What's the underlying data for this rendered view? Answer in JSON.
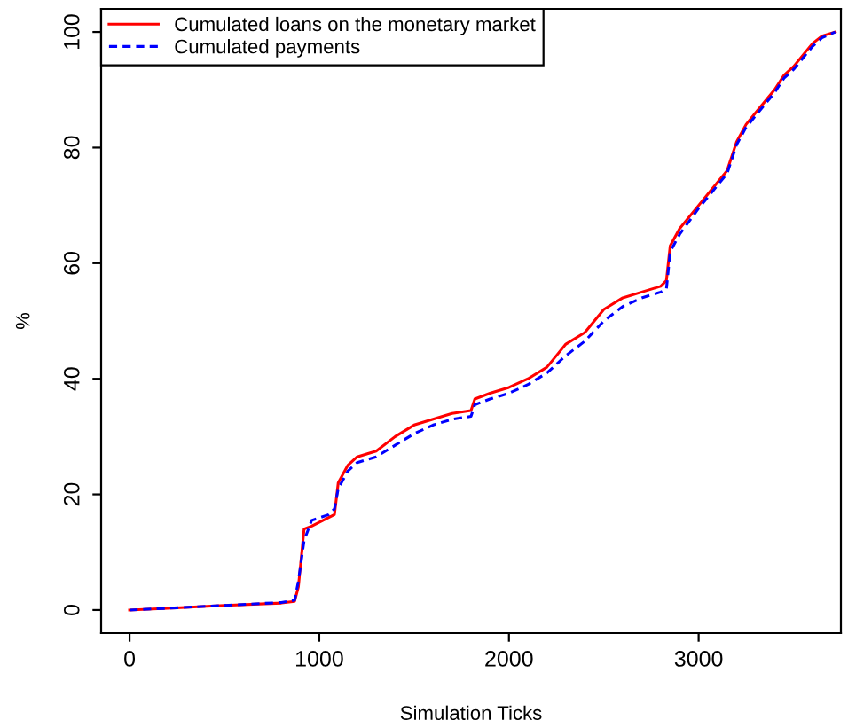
{
  "chart_data": {
    "type": "line",
    "xlabel": "Simulation Ticks",
    "ylabel": "%",
    "xlim": [
      -150,
      3750
    ],
    "ylim": [
      -4,
      104
    ],
    "xticks": [
      0,
      1000,
      2000,
      3000
    ],
    "yticks": [
      0,
      20,
      40,
      60,
      80,
      100
    ],
    "grid": false,
    "legend": "top left",
    "marker": "none",
    "series": [
      {
        "name": "Cumulated loans on the monetary market",
        "color": "#ff0000",
        "line_style": "solid",
        "x": [
          0,
          200,
          500,
          800,
          870,
          890,
          920,
          960,
          1020,
          1080,
          1100,
          1150,
          1200,
          1300,
          1400,
          1500,
          1600,
          1700,
          1800,
          1820,
          1900,
          2000,
          2100,
          2200,
          2250,
          2300,
          2400,
          2450,
          2500,
          2600,
          2700,
          2800,
          2830,
          2850,
          2900,
          3000,
          3050,
          3100,
          3150,
          3200,
          3250,
          3300,
          3350,
          3400,
          3450,
          3500,
          3550,
          3600,
          3650,
          3720
        ],
        "values": [
          0,
          0.3,
          0.8,
          1.2,
          1.5,
          4,
          14,
          14.5,
          15.5,
          16.5,
          22,
          25,
          26.5,
          27.5,
          30,
          32,
          33,
          34,
          34.5,
          36.5,
          37.5,
          38.5,
          40,
          42,
          44,
          46,
          48,
          50,
          52,
          54,
          55,
          56,
          57,
          63,
          66,
          70,
          72,
          74,
          76,
          81,
          84,
          86,
          88,
          90,
          92.5,
          94,
          96,
          98,
          99.3,
          100
        ]
      },
      {
        "name": "Cumulated payments",
        "color": "#0000ff",
        "line_style": "dashed",
        "x": [
          0,
          200,
          500,
          800,
          870,
          890,
          920,
          960,
          1050,
          1080,
          1100,
          1150,
          1200,
          1300,
          1400,
          1500,
          1600,
          1700,
          1800,
          1820,
          1900,
          2000,
          2100,
          2200,
          2300,
          2400,
          2500,
          2600,
          2700,
          2800,
          2830,
          2850,
          2900,
          3000,
          3050,
          3100,
          3150,
          3200,
          3250,
          3300,
          3350,
          3400,
          3450,
          3500,
          3550,
          3600,
          3650,
          3720
        ],
        "values": [
          0,
          0.3,
          0.8,
          1.3,
          1.7,
          5,
          12,
          15.5,
          16.5,
          17.5,
          21,
          24,
          25.5,
          26.5,
          28.5,
          30.5,
          32,
          33,
          33.5,
          35.5,
          36.5,
          37.5,
          39,
          41,
          44,
          46.5,
          50,
          52.5,
          54,
          55,
          55.5,
          62,
          65,
          69.5,
          71.5,
          73.5,
          75.5,
          80.5,
          83.5,
          85.5,
          87.5,
          89.5,
          92,
          93.5,
          95.5,
          97.5,
          99,
          100
        ]
      }
    ]
  }
}
